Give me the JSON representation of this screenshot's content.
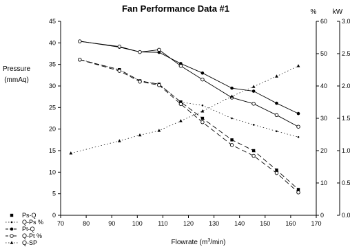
{
  "chart_data": {
    "type": "line",
    "title": "Fan Performance Data  #1",
    "xlabel": "Flowrate (m",
    "xlabel_sup": "3",
    "xlabel_tail": "/min)",
    "ylabel_line1": "Pressure",
    "ylabel_line2": "(mmAq)",
    "y2label": "%",
    "y3label": "kW",
    "xlim": [
      70,
      170
    ],
    "ylim": [
      0,
      45
    ],
    "y2lim": [
      0,
      60
    ],
    "y3lim": [
      0,
      3.0
    ],
    "x_ticks": [
      "70",
      "80",
      "90",
      "100",
      "110",
      "120",
      "130",
      "140",
      "150",
      "160",
      "170"
    ],
    "y_ticks": [
      "0",
      "5",
      "10",
      "15",
      "20",
      "25",
      "30",
      "35",
      "40",
      "45"
    ],
    "y2_ticks": [
      "0",
      "10",
      "20",
      "30",
      "40",
      "50",
      "60"
    ],
    "y3_ticks": [
      "0.0",
      "0.5",
      "1.0",
      "1.5",
      "2.0",
      "2.5",
      "3.0"
    ],
    "grid": false,
    "legend_position": "bottom-left",
    "series": [
      {
        "name": "Ps-Q",
        "axis": "left",
        "marker": "square",
        "line": "dashed",
        "x": [
          77.5,
          93,
          101,
          108.5,
          117,
          125.5,
          137,
          145.5,
          154.5,
          163
        ],
        "values": [
          36.1,
          33.8,
          31.2,
          30.4,
          26.3,
          22.5,
          17.5,
          15,
          10.5,
          6
        ]
      },
      {
        "name": "Q-Ps %",
        "axis": "right-pct",
        "marker": "dot",
        "line": "dotted",
        "x": [
          77.5,
          93,
          101,
          108.5,
          117,
          125.5,
          137,
          145.5,
          154.5,
          163
        ],
        "values": [
          48.2,
          45,
          41.6,
          40.6,
          35,
          34,
          30,
          28,
          26,
          24.2
        ]
      },
      {
        "name": "Pt-Q",
        "axis": "left",
        "marker": "filled-circle",
        "line": "solid",
        "x": [
          77.5,
          93,
          101,
          108.5,
          117,
          125.5,
          137,
          145.5,
          154.5,
          163
        ],
        "values": [
          40.4,
          39,
          37.9,
          37.8,
          35.2,
          33,
          29.5,
          28.8,
          26,
          23.6
        ]
      },
      {
        "name": "Q-Pt %",
        "axis": "right-pct",
        "marker": "open-circle",
        "line": "solid",
        "x": [
          77.5,
          93,
          101,
          108.5,
          117,
          125.5,
          137,
          145.5,
          154.5,
          163
        ],
        "values": [
          53.8,
          52.2,
          50.5,
          51.2,
          46.2,
          42,
          36.4,
          34.5,
          31,
          27.4
        ]
      },
      {
        "name": "Q-Pt",
        "axis": "left",
        "marker": "open-circle",
        "line": "dashed",
        "x": [
          77.5,
          93,
          101,
          108.5,
          117,
          125.5,
          137,
          145.5,
          154.5,
          163
        ],
        "values": [
          36.1,
          33.5,
          31,
          30.2,
          25.8,
          21.6,
          16.3,
          13.8,
          9.8,
          5.3
        ]
      },
      {
        "name": "Q-SP",
        "axis": "right-kw",
        "marker": "triangle",
        "line": "dotted",
        "x": [
          74,
          93,
          101,
          108.5,
          117,
          125.5,
          137,
          145.5,
          154.5,
          163
        ],
        "values": [
          0.96,
          1.15,
          1.24,
          1.31,
          1.46,
          1.61,
          1.84,
          1.99,
          2.15,
          2.31
        ]
      }
    ],
    "legend": [
      {
        "label": "Ps-Q",
        "marker": "square",
        "line": "none"
      },
      {
        "label": "Q-Ps %",
        "marker": "dot",
        "line": "dotted"
      },
      {
        "label": "Pt-Q",
        "marker": "filled-circle",
        "line": "dashed"
      },
      {
        "label": "Q-Pt %",
        "marker": "open-circle",
        "line": "dashed"
      },
      {
        "label": "Q-SP",
        "marker": "triangle",
        "line": "dotted"
      }
    ]
  }
}
